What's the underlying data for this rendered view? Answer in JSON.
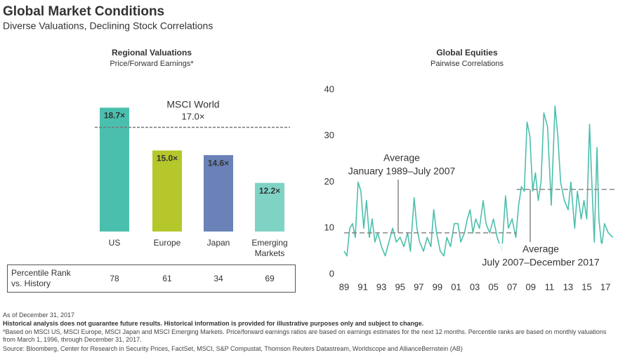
{
  "header": {
    "title": "Global Market Conditions",
    "subtitle": "Diverse Valuations, Declining Stock Correlations"
  },
  "chart_data": [
    {
      "type": "bar",
      "title": "Regional Valuations",
      "subtitle": "Price/Forward Earnings*",
      "categories": [
        "US",
        "Europe",
        "Japan",
        "Emerging Markets"
      ],
      "values": [
        18.7,
        15.0,
        14.6,
        12.2
      ],
      "value_labels": [
        "18.7×",
        "15.0×",
        "14.6×",
        "12.2×"
      ],
      "colors": [
        "#4bbfad",
        "#b5c72a",
        "#6a82b8",
        "#7fd3c4"
      ],
      "ylim": [
        8,
        20
      ],
      "reference": {
        "label": "MSCI World",
        "value": 17.0,
        "value_label": "17.0×"
      },
      "table": {
        "label": "Percentile Rank vs. History",
        "values": [
          78,
          61,
          34,
          69
        ]
      }
    },
    {
      "type": "line",
      "title": "Global Equities",
      "subtitle": "Pairwise Correlations",
      "color": "#4cbfad",
      "x": [
        1989.0,
        1989.3,
        1989.6,
        1989.9,
        1990.2,
        1990.5,
        1990.8,
        1991.1,
        1991.4,
        1991.7,
        1992.0,
        1992.3,
        1992.6,
        1993.0,
        1993.4,
        1993.8,
        1994.2,
        1994.6,
        1995.0,
        1995.4,
        1995.8,
        1996.1,
        1996.5,
        1996.8,
        1997.1,
        1997.5,
        1997.9,
        1998.3,
        1998.6,
        1998.9,
        1999.3,
        1999.7,
        2000.0,
        2000.4,
        2000.8,
        2001.2,
        2001.5,
        2001.9,
        2002.2,
        2002.5,
        2002.8,
        2003.1,
        2003.5,
        2003.9,
        2004.2,
        2004.6,
        2005.0,
        2005.4,
        2005.9,
        2006.3,
        2006.6,
        2007.0,
        2007.4,
        2007.7,
        2008.0,
        2008.3,
        2008.6,
        2008.9,
        2009.2,
        2009.5,
        2009.8,
        2010.1,
        2010.4,
        2010.8,
        2011.2,
        2011.6,
        2011.9,
        2012.2,
        2012.6,
        2013.0,
        2013.3,
        2013.7,
        2014.0,
        2014.4,
        2014.7,
        2015.0,
        2015.3,
        2015.5,
        2015.8,
        2016.1,
        2016.3,
        2016.6,
        2016.9,
        2017.3,
        2017.8
      ],
      "values": [
        5,
        4,
        10,
        11,
        8,
        20,
        18,
        10,
        16,
        8,
        12,
        7,
        9,
        6,
        4,
        7,
        10,
        7,
        8,
        6,
        9,
        5,
        16.6,
        10,
        7,
        5,
        8,
        6,
        14,
        9,
        5,
        4,
        8,
        6,
        11,
        11,
        7,
        9,
        12,
        14,
        9,
        12,
        10,
        16,
        11,
        9,
        12,
        8,
        5,
        17,
        10,
        12,
        8,
        15,
        19,
        18,
        33,
        30,
        18,
        22,
        16,
        20,
        35,
        32,
        15,
        36.5,
        30,
        20,
        16,
        14,
        20,
        10,
        18,
        12,
        16,
        12,
        32.5,
        22,
        7,
        27.5,
        12,
        6,
        11,
        9,
        8
      ],
      "xlim": [
        1989,
        2018
      ],
      "xticks": [
        {
          "value": 1989,
          "label": "89"
        },
        {
          "value": 1991,
          "label": "91"
        },
        {
          "value": 1993,
          "label": "93"
        },
        {
          "value": 1995,
          "label": "95"
        },
        {
          "value": 1997,
          "label": "97"
        },
        {
          "value": 1999,
          "label": "99"
        },
        {
          "value": 2001,
          "label": "01"
        },
        {
          "value": 2003,
          "label": "03"
        },
        {
          "value": 2005,
          "label": "05"
        },
        {
          "value": 2007,
          "label": "07"
        },
        {
          "value": 2009,
          "label": "09"
        },
        {
          "value": 2011,
          "label": "11"
        },
        {
          "value": 2013,
          "label": "13"
        },
        {
          "value": 2015,
          "label": "15"
        },
        {
          "value": 2017,
          "label": "17"
        }
      ],
      "ylim": [
        0,
        40
      ],
      "yticks": [
        0,
        10,
        20,
        30,
        40
      ],
      "averages": [
        {
          "label": "Average",
          "period": "January 1989–July 2007",
          "value": 9,
          "start": 1989,
          "end": 2007.5
        },
        {
          "label": "Average",
          "period": "July 2007–December 2017",
          "value": 18.4,
          "start": 2007.5,
          "end": 2018
        }
      ]
    }
  ],
  "footer": {
    "as_of": "As of December 31, 2017",
    "disclaimer": "Historical analysis does not guarantee future results. Historical information is provided for illustrative purposes only and subject to change.",
    "footnote": "*Based on MSCI US, MSCI Europe, MSCI Japan and MSCI Emerging Markets. Price/forward earnings ratios are based on earnings estimates for the next 12 months. Percentile ranks are based on monthly valuations from March 1, 1996, through December 31, 2017.",
    "source": "Source: Bloomberg, Center for Research in Security Prices, FactSet, MSCI, S&P Compustat, Thomson Reuters Datastream, Worldscope and AllianceBernstein (AB)"
  }
}
